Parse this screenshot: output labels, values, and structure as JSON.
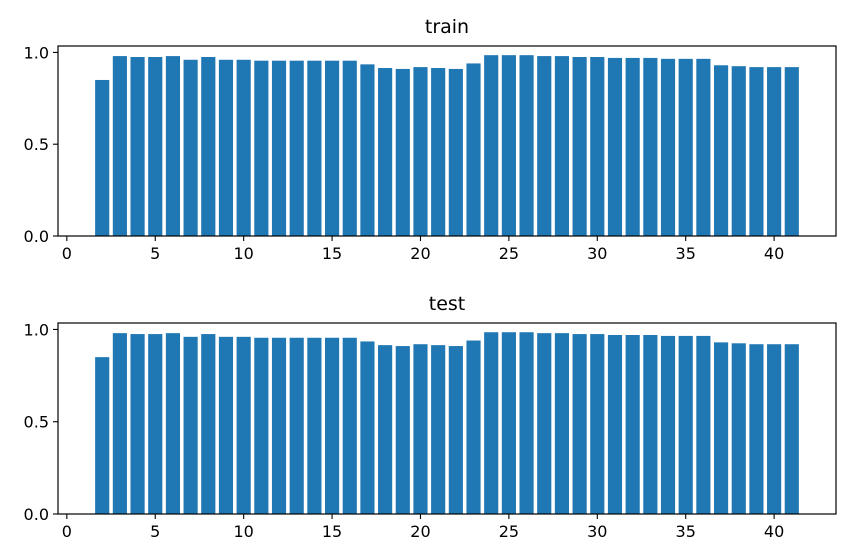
{
  "chart_data": [
    {
      "type": "bar",
      "title": "train",
      "xlabel": "",
      "ylabel": "",
      "x": [
        2,
        3,
        4,
        5,
        6,
        7,
        8,
        9,
        10,
        11,
        12,
        13,
        14,
        15,
        16,
        17,
        18,
        19,
        20,
        21,
        22,
        23,
        24,
        25,
        26,
        27,
        28,
        29,
        30,
        31,
        32,
        33,
        34,
        35,
        36,
        37,
        38,
        39,
        40,
        41
      ],
      "values": [
        0.85,
        0.98,
        0.975,
        0.975,
        0.98,
        0.96,
        0.975,
        0.96,
        0.96,
        0.955,
        0.955,
        0.955,
        0.955,
        0.955,
        0.955,
        0.935,
        0.915,
        0.91,
        0.92,
        0.915,
        0.91,
        0.94,
        0.985,
        0.985,
        0.985,
        0.98,
        0.98,
        0.975,
        0.975,
        0.97,
        0.97,
        0.97,
        0.965,
        0.965,
        0.965,
        0.93,
        0.925,
        0.92,
        0.92,
        0.92
      ],
      "xlim": [
        -0.5,
        43.5
      ],
      "ylim": [
        0,
        1.035
      ],
      "xticks": [
        0,
        5,
        10,
        15,
        20,
        25,
        30,
        35,
        40
      ],
      "yticks": [
        0.0,
        0.5,
        1.0
      ],
      "ytick_labels": [
        "0.0",
        "0.5",
        "1.0"
      ],
      "grid": false,
      "color": "#1f77b4"
    },
    {
      "type": "bar",
      "title": "test",
      "xlabel": "",
      "ylabel": "",
      "x": [
        2,
        3,
        4,
        5,
        6,
        7,
        8,
        9,
        10,
        11,
        12,
        13,
        14,
        15,
        16,
        17,
        18,
        19,
        20,
        21,
        22,
        23,
        24,
        25,
        26,
        27,
        28,
        29,
        30,
        31,
        32,
        33,
        34,
        35,
        36,
        37,
        38,
        39,
        40,
        41
      ],
      "values": [
        0.85,
        0.98,
        0.975,
        0.975,
        0.98,
        0.96,
        0.975,
        0.96,
        0.96,
        0.955,
        0.955,
        0.955,
        0.955,
        0.955,
        0.955,
        0.935,
        0.915,
        0.91,
        0.92,
        0.915,
        0.91,
        0.94,
        0.985,
        0.985,
        0.985,
        0.98,
        0.98,
        0.975,
        0.975,
        0.97,
        0.97,
        0.97,
        0.965,
        0.965,
        0.965,
        0.93,
        0.925,
        0.92,
        0.92,
        0.92
      ],
      "xlim": [
        -0.5,
        43.5
      ],
      "ylim": [
        0,
        1.035
      ],
      "xticks": [
        0,
        5,
        10,
        15,
        20,
        25,
        30,
        35,
        40
      ],
      "yticks": [
        0.0,
        0.5,
        1.0
      ],
      "ytick_labels": [
        "0.0",
        "0.5",
        "1.0"
      ],
      "grid": false,
      "color": "#1f77b4"
    }
  ]
}
